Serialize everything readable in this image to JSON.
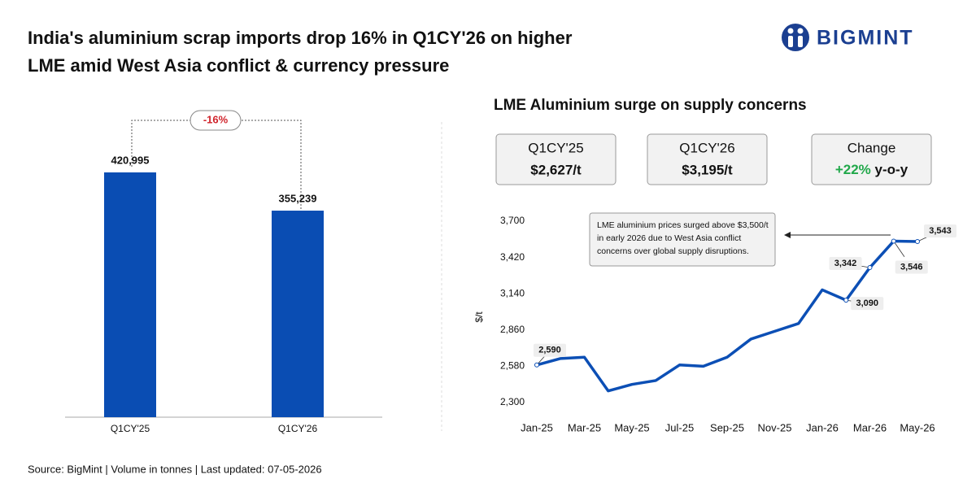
{
  "header": {
    "title_line1": "India's aluminium scrap imports drop 16% in Q1CY'26 on higher",
    "title_line2": "LME amid West Asia conflict & currency pressure",
    "logo": "BIGMINT"
  },
  "chart_data": [
    {
      "type": "bar",
      "categories": [
        "Q1CY'25",
        "Q1CY'26"
      ],
      "values": [
        420995,
        355239
      ],
      "value_labels": [
        "420,995",
        "355,239"
      ],
      "color": "#0a4db3",
      "annotation": "-16%"
    },
    {
      "type": "line",
      "title": "LME Aluminium surge on supply concerns",
      "stats": [
        {
          "label": "Q1CY'25",
          "value": "$2,627/t"
        },
        {
          "label": "Q1CY'26",
          "value": "$3,195/t"
        },
        {
          "label": "Change",
          "value": "+22%",
          "suffix": "y-o-y"
        }
      ],
      "categories": [
        "Jan-25",
        null,
        "Mar-25",
        null,
        "May-25",
        null,
        "Jul-25",
        null,
        "Sep-25",
        null,
        "Nov-25",
        null,
        "Jan-26",
        null,
        "Mar-26",
        null,
        "May-26"
      ],
      "series": [
        {
          "name": "LME aluminium",
          "color": "#0c4fb5",
          "values": [
            2590,
            2640,
            2650,
            2390,
            2440,
            2470,
            2590,
            2580,
            2650,
            2790,
            2850,
            2910,
            3170,
            3090,
            3342,
            3546,
            3543
          ],
          "value_labels": [
            "2,590",
            null,
            null,
            null,
            null,
            null,
            null,
            null,
            null,
            null,
            null,
            null,
            null,
            "3,090",
            "3,342",
            "3,546",
            "3,543"
          ]
        }
      ],
      "ylabel": "$/t",
      "ylim": [
        2300,
        3700
      ],
      "yticks": [
        {
          "value": 2300,
          "label": "2,300"
        },
        {
          "value": 2580,
          "label": "2,580"
        },
        {
          "value": 2860,
          "label": "2,860"
        },
        {
          "value": 3140,
          "label": "3,140"
        },
        {
          "value": 3420,
          "label": "3,420"
        },
        {
          "value": 3700,
          "label": "3,700"
        }
      ],
      "annotation": [
        "LME aluminium prices surged above $3,500/t",
        "in early 2026 due to West Asia conflict",
        "concerns over global supply disruptions."
      ]
    }
  ],
  "footer": "Source: BigMint | Volume in tonnes | Last updated: 07-05-2026"
}
